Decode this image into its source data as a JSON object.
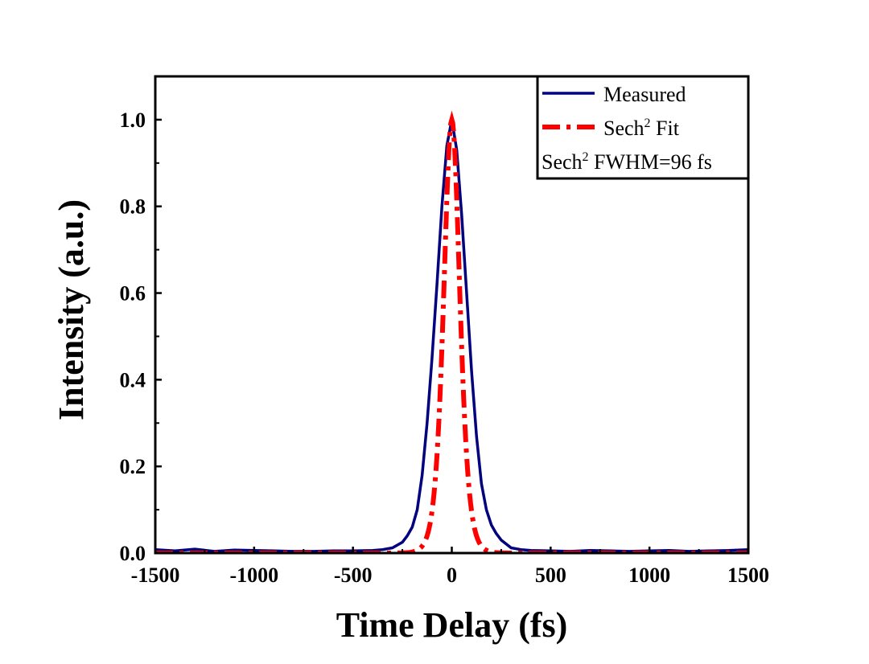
{
  "chart_data": {
    "type": "line",
    "xlabel": "Time Delay (fs)",
    "ylabel": "Intensity (a.u.)",
    "xlim": [
      -1500,
      1500
    ],
    "ylim": [
      0,
      1.1
    ],
    "xticks": [
      -1500,
      -1000,
      -500,
      0,
      500,
      1000,
      1500
    ],
    "xtick_labels": [
      "-1500",
      "-1000",
      "-500",
      "0",
      "500",
      "1000",
      "1500"
    ],
    "yticks": [
      0.0,
      0.2,
      0.4,
      0.6,
      0.8,
      1.0
    ],
    "ytick_labels": [
      "0.0",
      "0.2",
      "0.4",
      "0.6",
      "0.8",
      "1.0"
    ],
    "grid": false,
    "legend_position": "top-right",
    "series": [
      {
        "name": "Measured",
        "style": "solid",
        "color": "#00007f",
        "x": [
          -1500,
          -1400,
          -1300,
          -1200,
          -1100,
          -1000,
          -900,
          -800,
          -700,
          -600,
          -500,
          -400,
          -350,
          -300,
          -250,
          -225,
          -200,
          -175,
          -150,
          -125,
          -100,
          -75,
          -50,
          -25,
          0,
          25,
          50,
          75,
          100,
          125,
          150,
          175,
          200,
          225,
          250,
          300,
          350,
          400,
          500,
          600,
          700,
          800,
          900,
          1000,
          1100,
          1200,
          1300,
          1400,
          1500
        ],
        "y": [
          0.008,
          0.005,
          0.009,
          0.004,
          0.007,
          0.006,
          0.005,
          0.004,
          0.004,
          0.005,
          0.005,
          0.006,
          0.008,
          0.012,
          0.025,
          0.04,
          0.06,
          0.1,
          0.18,
          0.3,
          0.45,
          0.62,
          0.8,
          0.94,
          1.0,
          0.93,
          0.78,
          0.6,
          0.42,
          0.27,
          0.16,
          0.1,
          0.065,
          0.045,
          0.03,
          0.012,
          0.008,
          0.006,
          0.005,
          0.004,
          0.006,
          0.005,
          0.004,
          0.005,
          0.006,
          0.004,
          0.005,
          0.006,
          0.008
        ]
      },
      {
        "name": "Sech",
        "name_sup": "2",
        "name_suffix": " Fit",
        "style": "dash-dot",
        "color": "#ff0000",
        "function": "sech2",
        "center": 0,
        "fwhm": 96,
        "amplitude": 1.0
      }
    ],
    "annotation": {
      "prefix": "Sech",
      "sup": "2",
      "suffix": " FWHM=96 fs"
    }
  }
}
